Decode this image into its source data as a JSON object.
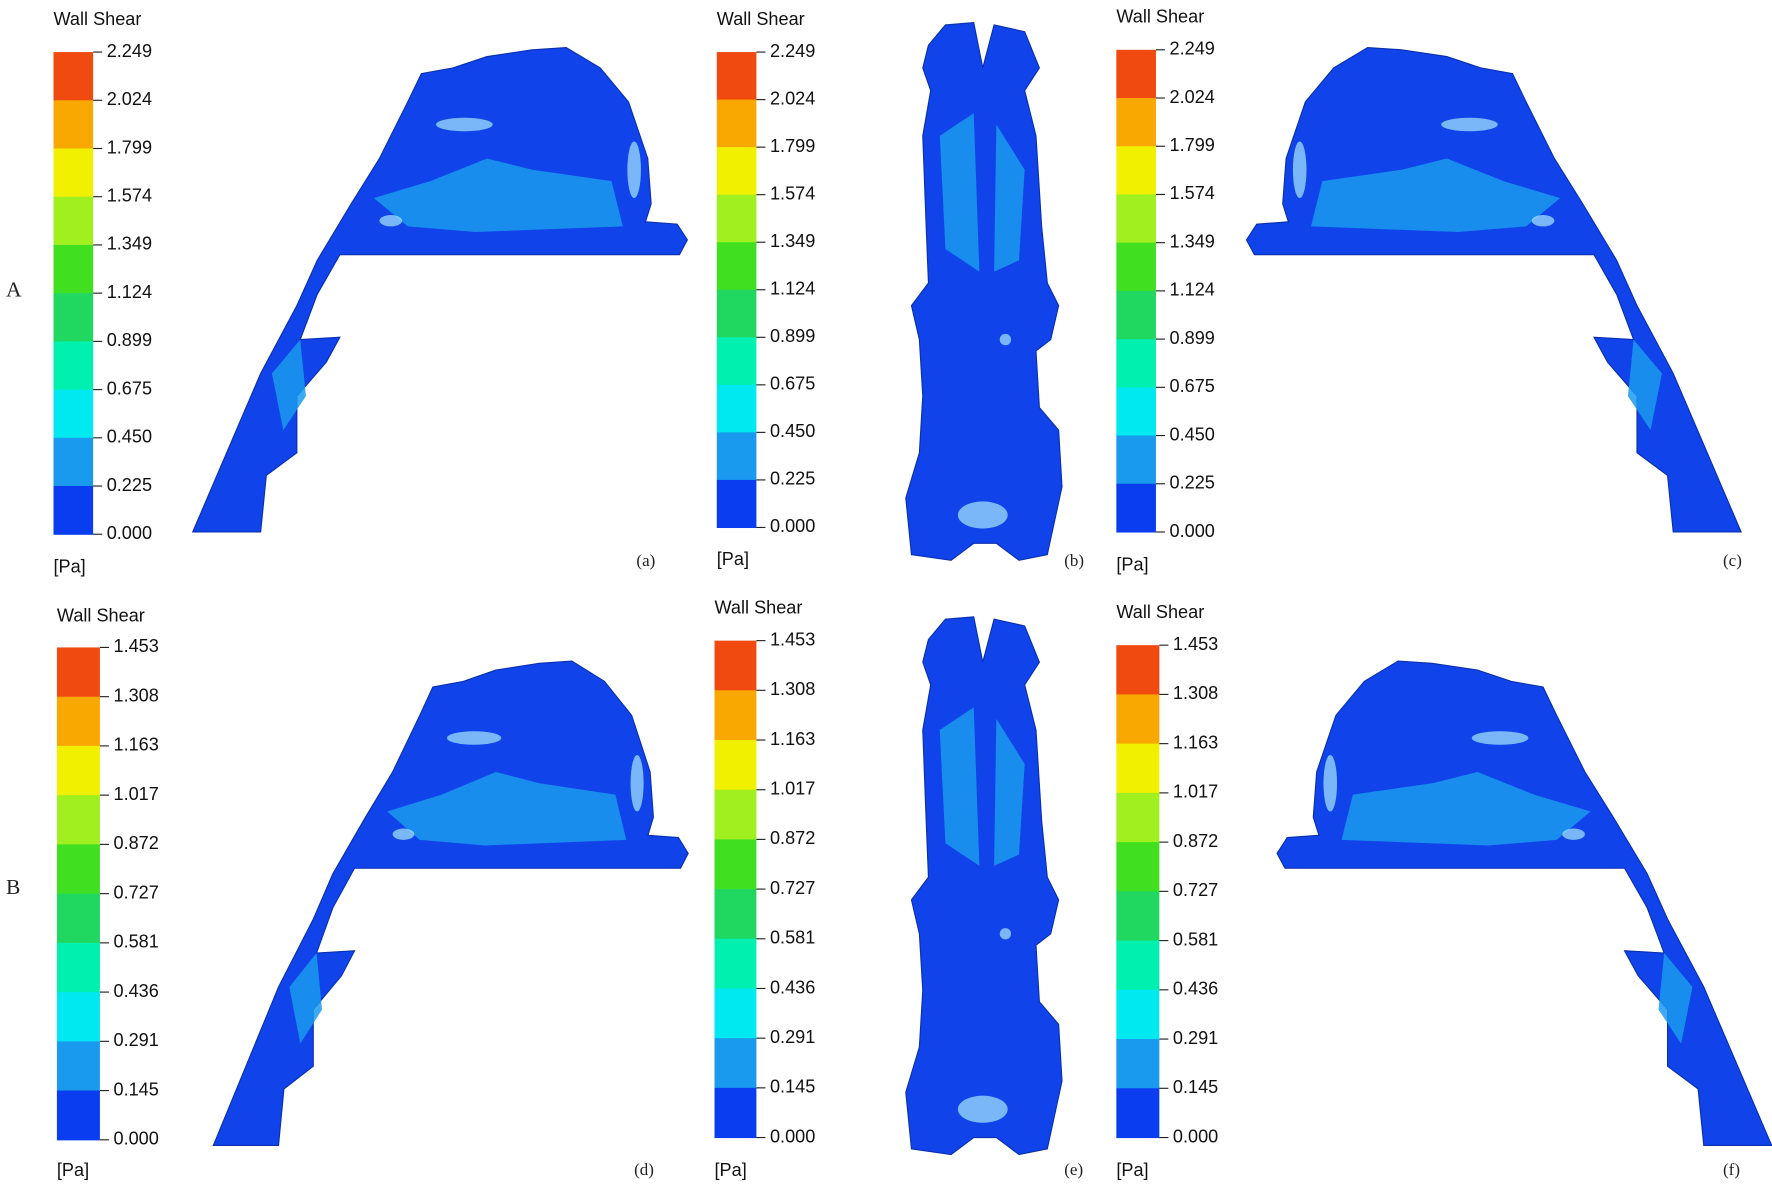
{
  "rows": [
    {
      "label": "A",
      "panels": [
        {
          "label": "(a)",
          "legend": {
            "title": "Wall Shear",
            "unit": "[Pa]",
            "ticks": [
              "2.249",
              "2.024",
              "1.799",
              "1.574",
              "1.349",
              "1.124",
              "0.899",
              "0.675",
              "0.450",
              "0.225",
              "0.000"
            ]
          }
        },
        {
          "label": "(b)",
          "legend": {
            "title": "Wall Shear",
            "unit": "[Pa]",
            "ticks": [
              "2.249",
              "2.024",
              "1.799",
              "1.574",
              "1.349",
              "1.124",
              "0.899",
              "0.675",
              "0.450",
              "0.225",
              "0.000"
            ]
          }
        },
        {
          "label": "(c)",
          "legend": {
            "title": "Wall Shear",
            "unit": "[Pa]",
            "ticks": [
              "2.249",
              "2.024",
              "1.799",
              "1.574",
              "1.349",
              "1.124",
              "0.899",
              "0.675",
              "0.450",
              "0.225",
              "0.000"
            ]
          }
        }
      ]
    },
    {
      "label": "B",
      "panels": [
        {
          "label": "(d)",
          "legend": {
            "title": "Wall Shear",
            "unit": "[Pa]",
            "ticks": [
              "1.453",
              "1.308",
              "1.163",
              "1.017",
              "0.872",
              "0.727",
              "0.581",
              "0.436",
              "0.291",
              "0.145",
              "0.000"
            ]
          }
        },
        {
          "label": "(e)",
          "legend": {
            "title": "Wall Shear",
            "unit": "[Pa]",
            "ticks": [
              "1.453",
              "1.308",
              "1.163",
              "1.017",
              "0.872",
              "0.727",
              "0.581",
              "0.436",
              "0.291",
              "0.145",
              "0.000"
            ]
          }
        },
        {
          "label": "(f)",
          "legend": {
            "title": "Wall Shear",
            "unit": "[Pa]",
            "ticks": [
              "1.453",
              "1.308",
              "1.163",
              "1.017",
              "0.872",
              "0.727",
              "0.581",
              "0.436",
              "0.291",
              "0.145",
              "0.000"
            ]
          }
        }
      ]
    }
  ],
  "band_colors": [
    "#f04a10",
    "#f8a800",
    "#f0f000",
    "#a0f020",
    "#40e020",
    "#20d860",
    "#00f0b0",
    "#00e8f0",
    "#1a9aef",
    "#0a3cf0"
  ]
}
